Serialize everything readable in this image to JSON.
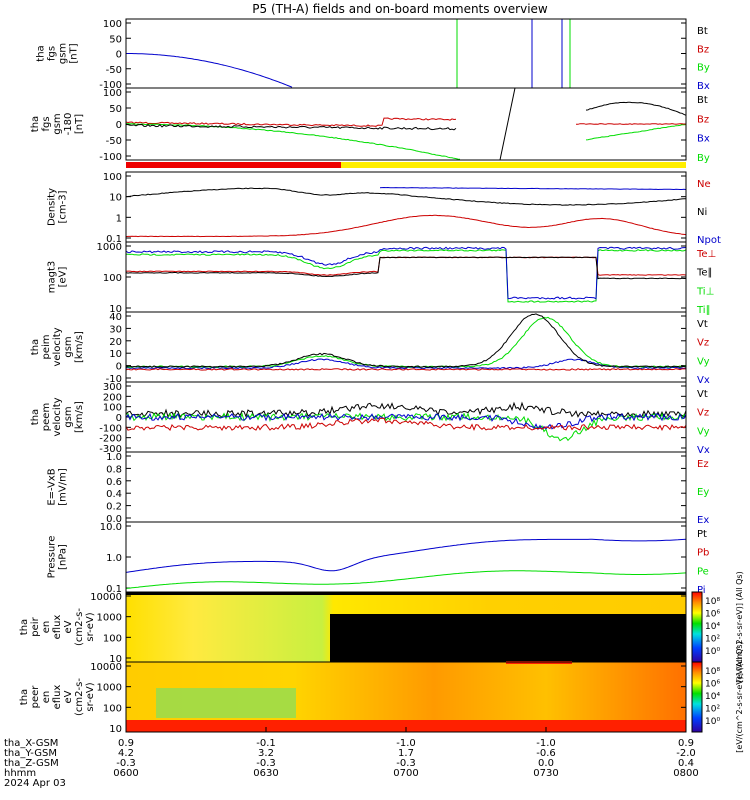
{
  "title": "P5 (TH-A) fields and on-board moments overview",
  "colors": {
    "black": "#000000",
    "red": "#cc0000",
    "green": "#00dd00",
    "blue": "#0000cc"
  },
  "chart_data": [
    {
      "id": "fgs_bt",
      "type": "line",
      "ylabel": [
        "tha",
        "fgs",
        "gsm",
        "[nT]"
      ],
      "ylim": [
        -100,
        100
      ],
      "yticks": [
        "100",
        "50",
        "0",
        "-50",
        "-100"
      ],
      "legend": [
        {
          "label": "Bt",
          "color": "black"
        },
        {
          "label": "Bz",
          "color": "red"
        },
        {
          "label": "By",
          "color": "green"
        },
        {
          "label": "Bx",
          "color": "blue"
        }
      ]
    },
    {
      "id": "fgs_bx",
      "type": "line",
      "ylabel": [
        "tha",
        "fgs",
        "gsm",
        "-180",
        "[nT]"
      ],
      "ylim": [
        -120,
        100
      ],
      "yticks": [
        "100",
        "50",
        "0",
        "-50",
        "-100"
      ],
      "legend": [
        {
          "label": "Bt",
          "color": "black"
        },
        {
          "label": "Bz",
          "color": "red"
        },
        {
          "label": "Bx",
          "color": "blue"
        },
        {
          "label": "By",
          "color": "green"
        }
      ]
    },
    {
      "id": "density",
      "type": "line",
      "scale": "log",
      "ylabel": [
        "Density",
        "[cm-3]"
      ],
      "ylim": [
        0.1,
        100
      ],
      "yticks": [
        "100",
        "10",
        "1",
        "0.1"
      ],
      "legend": [
        {
          "label": "Ne",
          "color": "red"
        },
        {
          "label": "Ni",
          "color": "black"
        },
        {
          "label": "Npot",
          "color": "blue"
        }
      ]
    },
    {
      "id": "temperature",
      "type": "line",
      "scale": "log",
      "ylabel": [
        "magt3",
        "[eV]"
      ],
      "ylim": [
        10,
        1500
      ],
      "yticks": [
        "1000",
        "100",
        "10"
      ],
      "legend": [
        {
          "label": "Te⊥",
          "color": "red"
        },
        {
          "label": "Te∥",
          "color": "black"
        },
        {
          "label": "Ti⊥",
          "color": "green"
        },
        {
          "label": "Ti∥",
          "color": "green"
        }
      ]
    },
    {
      "id": "peim_velocity",
      "type": "line",
      "ylabel": [
        "tha",
        "peim",
        "velocity",
        "gsm",
        "[km/s]"
      ],
      "ylim": [
        -10,
        40
      ],
      "yticks": [
        "40",
        "30",
        "20",
        "10",
        "0",
        "-10"
      ],
      "legend": [
        {
          "label": "Vt",
          "color": "black"
        },
        {
          "label": "Vz",
          "color": "red"
        },
        {
          "label": "Vy",
          "color": "green"
        },
        {
          "label": "Vx",
          "color": "blue"
        }
      ]
    },
    {
      "id": "peem_velocity",
      "type": "line",
      "ylabel": [
        "tha",
        "peem",
        "velocity",
        "gsm",
        "[km/s]"
      ],
      "ylim": [
        -300,
        300
      ],
      "yticks": [
        "300",
        "200",
        "100",
        "0",
        "-100",
        "-200",
        "-300"
      ],
      "legend": [
        {
          "label": "Vt",
          "color": "black"
        },
        {
          "label": "Vz",
          "color": "red"
        },
        {
          "label": "Vy",
          "color": "green"
        },
        {
          "label": "Vx",
          "color": "blue"
        }
      ]
    },
    {
      "id": "efield",
      "type": "line",
      "ylabel": [
        "E=-VxB",
        "[mV/m]"
      ],
      "ylim": [
        0,
        1
      ],
      "yticks": [
        "1.0",
        "0.8",
        "0.6",
        "0.4",
        "0.2",
        "0.0"
      ],
      "legend": [
        {
          "label": "Ez",
          "color": "red"
        },
        {
          "label": "Ey",
          "color": "green"
        },
        {
          "label": "Ex",
          "color": "blue"
        }
      ]
    },
    {
      "id": "pressure",
      "type": "line",
      "scale": "log",
      "ylabel": [
        "Pressure",
        "[nPa]"
      ],
      "ylim": [
        0.03,
        20
      ],
      "yticks": [
        "10.0",
        "1.0",
        "0.1"
      ],
      "legend": [
        {
          "label": "Pt",
          "color": "black"
        },
        {
          "label": "Pb",
          "color": "red"
        },
        {
          "label": "Pe",
          "color": "green"
        },
        {
          "label": "Pi",
          "color": "blue"
        }
      ]
    },
    {
      "id": "peir_spectrum",
      "type": "heatmap",
      "ylabel": [
        "tha",
        "peir",
        "en",
        "eflux",
        "eV",
        "(cm2-s-",
        "sr-eV)"
      ],
      "yticks": [
        "10000",
        "1000",
        "100",
        "10"
      ]
    },
    {
      "id": "peer_spectrum",
      "type": "heatmap",
      "ylabel": [
        "tha",
        "peer",
        "en",
        "eflux",
        "eV",
        "(cm2-s-",
        "sr-eV)"
      ],
      "yticks": [
        "10000",
        "1000",
        "100",
        "10"
      ]
    }
  ],
  "colorbar": {
    "ticks_upper": [
      "10⁸",
      "10⁶",
      "10⁴",
      "10²",
      "10⁰"
    ],
    "ticks_lower": [
      "10⁸",
      "10⁶",
      "10⁴",
      "10²",
      "10⁰"
    ],
    "label_upper": "[eV/(cm^2-s-sr-eV)] (All Qs)",
    "label_lower": "[eV/(cm^2-s-sr-eV)] (All Qs)"
  },
  "xaxis": {
    "row_labels": [
      "tha_X-GSM",
      "tha_Y-GSM",
      "tha_Z-GSM",
      "hhmm",
      "2024 Apr 03"
    ],
    "columns": [
      {
        "x": "0.9",
        "y": "4.2",
        "z": "-0.3",
        "time": "0600"
      },
      {
        "x": "-0.1",
        "y": "3.2",
        "z": "-0.3",
        "time": "0630"
      },
      {
        "x": "-1.0",
        "y": "1.7",
        "z": "-0.3",
        "time": "0700"
      },
      {
        "x": "-1.0",
        "y": "-0.6",
        "z": "0.0",
        "time": "0730"
      },
      {
        "x": "0.9",
        "y": "-2.0",
        "z": "0.4",
        "time": "0800"
      }
    ]
  }
}
